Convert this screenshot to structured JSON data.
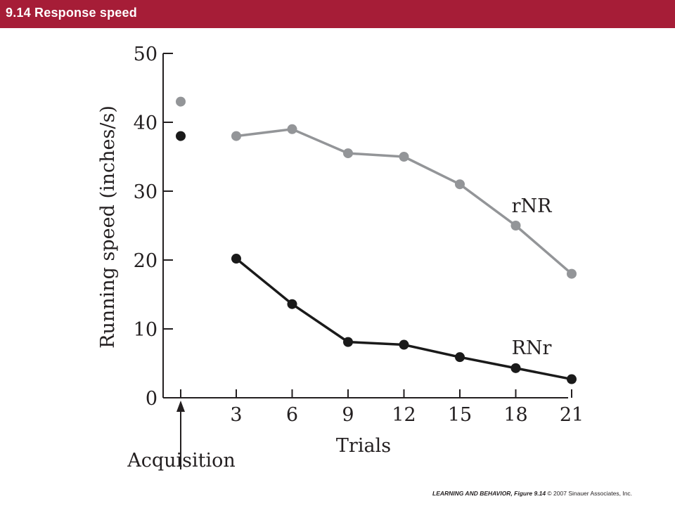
{
  "header": {
    "title": "9.14  Response speed"
  },
  "chart_data": {
    "type": "line",
    "ylabel": "Running speed (inches/s)",
    "xlabel": "Trials",
    "ylim": [
      0,
      50
    ],
    "yticks": [
      0,
      10,
      20,
      30,
      40,
      50
    ],
    "x_ticks": [
      "3",
      "6",
      "9",
      "12",
      "15",
      "18",
      "21"
    ],
    "acquisition_label": "Acquisition",
    "series": [
      {
        "name": "rNR",
        "color": "#939598",
        "acquisition_value": 43,
        "x": [
          3,
          6,
          9,
          12,
          15,
          18,
          21
        ],
        "values": [
          38,
          39,
          35.5,
          35,
          31,
          25,
          18
        ]
      },
      {
        "name": "RNr",
        "color": "#1a1a1a",
        "acquisition_value": 38,
        "x": [
          3,
          6,
          9,
          12,
          15,
          18,
          21
        ],
        "values": [
          20.2,
          13.6,
          8.1,
          7.7,
          5.9,
          4.3,
          2.7
        ]
      }
    ]
  },
  "credit": {
    "book": "LEARNING AND BEHAVIOR,",
    "figure": " Figure 9.14",
    "copyright": "  © 2007 Sinauer Associates, Inc."
  }
}
